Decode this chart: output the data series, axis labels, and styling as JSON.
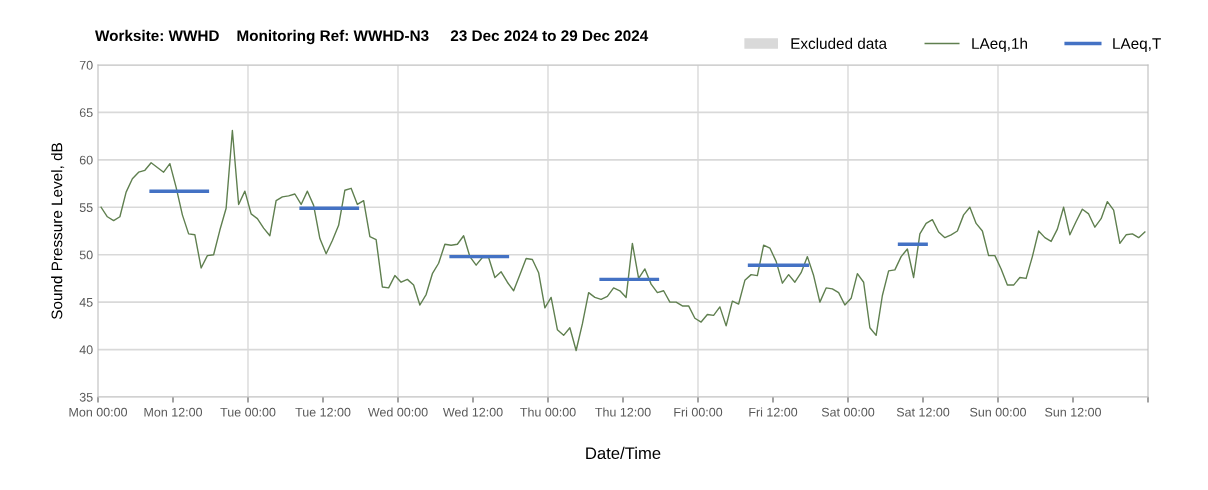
{
  "chart_data": {
    "type": "line",
    "title": "Worksite: WWHD    Monitoring Ref: WWHD-N3     23 Dec 2024 to 29 Dec 2024",
    "xlabel": "Date/Time",
    "ylabel": "Sound Pressure Level, dB",
    "xlim": [
      "2024-12-23T00:00",
      "2024-12-30T00:00"
    ],
    "ylim": [
      35,
      70
    ],
    "yticks": [
      35,
      40,
      45,
      50,
      55,
      60,
      65,
      70
    ],
    "xticks": [
      {
        "value": "2024-12-23T00:00",
        "label": "Mon 00:00"
      },
      {
        "value": "2024-12-23T12:00",
        "label": "Mon 12:00"
      },
      {
        "value": "2024-12-24T00:00",
        "label": "Tue 00:00"
      },
      {
        "value": "2024-12-24T12:00",
        "label": "Tue 12:00"
      },
      {
        "value": "2024-12-25T00:00",
        "label": "Wed 00:00"
      },
      {
        "value": "2024-12-25T12:00",
        "label": "Wed 12:00"
      },
      {
        "value": "2024-12-26T00:00",
        "label": "Thu 00:00"
      },
      {
        "value": "2024-12-26T12:00",
        "label": "Thu 12:00"
      },
      {
        "value": "2024-12-27T00:00",
        "label": "Fri 00:00"
      },
      {
        "value": "2024-12-27T12:00",
        "label": "Fri 12:00"
      },
      {
        "value": "2024-12-28T00:00",
        "label": "Sat 00:00"
      },
      {
        "value": "2024-12-28T12:00",
        "label": "Sat 12:00"
      },
      {
        "value": "2024-12-29T00:00",
        "label": "Sun 00:00"
      },
      {
        "value": "2024-12-29T12:00",
        "label": "Sun 12:00"
      },
      {
        "value": "2024-12-30T00:00",
        "label": null
      }
    ],
    "grid": "y",
    "legend": "top right",
    "ref_lines": [
      {
        "axis": "x",
        "value": "2024-12-24T00:00",
        "color": "#d9d9d9"
      },
      {
        "axis": "x",
        "value": "2024-12-25T00:00",
        "color": "#d9d9d9"
      },
      {
        "axis": "x",
        "value": "2024-12-26T00:00",
        "color": "#d9d9d9"
      },
      {
        "axis": "x",
        "value": "2024-12-27T00:00",
        "color": "#d9d9d9"
      },
      {
        "axis": "x",
        "value": "2024-12-28T00:00",
        "color": "#d9d9d9"
      },
      {
        "axis": "x",
        "value": "2024-12-29T00:00",
        "color": "#d9d9d9"
      }
    ],
    "series": [
      {
        "name": "Excluded data",
        "type": "area",
        "color": "#d9d9d9"
      },
      {
        "name": "LAeq,1h",
        "color": "#5f7f4f",
        "x": [
          "2024-12-23T00:30",
          "2024-12-23T01:30",
          "2024-12-23T02:30",
          "2024-12-23T03:30",
          "2024-12-23T04:30",
          "2024-12-23T05:30",
          "2024-12-23T06:30",
          "2024-12-23T07:30",
          "2024-12-23T08:30",
          "2024-12-23T09:30",
          "2024-12-23T10:30",
          "2024-12-23T11:30",
          "2024-12-23T12:30",
          "2024-12-23T13:30",
          "2024-12-23T14:30",
          "2024-12-23T15:30",
          "2024-12-23T16:30",
          "2024-12-23T17:30",
          "2024-12-23T18:30",
          "2024-12-23T19:30",
          "2024-12-23T20:30",
          "2024-12-23T21:30",
          "2024-12-23T22:30",
          "2024-12-23T23:30",
          "2024-12-24T00:30",
          "2024-12-24T01:30",
          "2024-12-24T02:30",
          "2024-12-24T03:30",
          "2024-12-24T04:30",
          "2024-12-24T05:30",
          "2024-12-24T06:30",
          "2024-12-24T07:30",
          "2024-12-24T08:30",
          "2024-12-24T09:30",
          "2024-12-24T10:30",
          "2024-12-24T11:30",
          "2024-12-24T12:30",
          "2024-12-24T13:30",
          "2024-12-24T14:30",
          "2024-12-24T15:30",
          "2024-12-24T16:30",
          "2024-12-24T17:30",
          "2024-12-24T18:30",
          "2024-12-24T19:30",
          "2024-12-24T20:30",
          "2024-12-24T21:30",
          "2024-12-24T22:30",
          "2024-12-24T23:30",
          "2024-12-25T00:30",
          "2024-12-25T01:30",
          "2024-12-25T02:30",
          "2024-12-25T03:30",
          "2024-12-25T04:30",
          "2024-12-25T05:30",
          "2024-12-25T06:30",
          "2024-12-25T07:30",
          "2024-12-25T08:30",
          "2024-12-25T09:30",
          "2024-12-25T10:30",
          "2024-12-25T11:30",
          "2024-12-25T12:30",
          "2024-12-25T13:30",
          "2024-12-25T14:30",
          "2024-12-25T15:30",
          "2024-12-25T16:30",
          "2024-12-25T17:30",
          "2024-12-25T18:30",
          "2024-12-25T19:30",
          "2024-12-25T20:30",
          "2024-12-25T21:30",
          "2024-12-25T22:30",
          "2024-12-25T23:30",
          "2024-12-26T00:30",
          "2024-12-26T01:30",
          "2024-12-26T02:30",
          "2024-12-26T03:30",
          "2024-12-26T04:30",
          "2024-12-26T05:30",
          "2024-12-26T06:30",
          "2024-12-26T07:30",
          "2024-12-26T08:30",
          "2024-12-26T09:30",
          "2024-12-26T10:30",
          "2024-12-26T11:30",
          "2024-12-26T12:30",
          "2024-12-26T13:30",
          "2024-12-26T14:30",
          "2024-12-26T15:30",
          "2024-12-26T16:30",
          "2024-12-26T17:30",
          "2024-12-26T18:30",
          "2024-12-26T19:30",
          "2024-12-26T20:30",
          "2024-12-26T21:30",
          "2024-12-26T22:30",
          "2024-12-26T23:30",
          "2024-12-27T00:30",
          "2024-12-27T01:30",
          "2024-12-27T02:30",
          "2024-12-27T03:30",
          "2024-12-27T04:30",
          "2024-12-27T05:30",
          "2024-12-27T06:30",
          "2024-12-27T07:30",
          "2024-12-27T08:30",
          "2024-12-27T09:30",
          "2024-12-27T10:30",
          "2024-12-27T11:30",
          "2024-12-27T12:30",
          "2024-12-27T13:30",
          "2024-12-27T14:30",
          "2024-12-27T15:30",
          "2024-12-27T16:30",
          "2024-12-27T17:30",
          "2024-12-27T18:30",
          "2024-12-27T19:30",
          "2024-12-27T20:30",
          "2024-12-27T21:30",
          "2024-12-27T22:30",
          "2024-12-27T23:30",
          "2024-12-28T00:30",
          "2024-12-28T01:30",
          "2024-12-28T02:30",
          "2024-12-28T03:30",
          "2024-12-28T04:30",
          "2024-12-28T05:30",
          "2024-12-28T06:30",
          "2024-12-28T07:30",
          "2024-12-28T08:30",
          "2024-12-28T09:30",
          "2024-12-28T10:30",
          "2024-12-28T11:30",
          "2024-12-28T12:30",
          "2024-12-28T13:30",
          "2024-12-28T14:30",
          "2024-12-28T15:30",
          "2024-12-28T16:30",
          "2024-12-28T17:30",
          "2024-12-28T18:30",
          "2024-12-28T19:30",
          "2024-12-28T20:30",
          "2024-12-28T21:30",
          "2024-12-28T22:30",
          "2024-12-28T23:30",
          "2024-12-29T00:30",
          "2024-12-29T01:30",
          "2024-12-29T02:30",
          "2024-12-29T03:30",
          "2024-12-29T04:30",
          "2024-12-29T05:30",
          "2024-12-29T06:30",
          "2024-12-29T07:30",
          "2024-12-29T08:30",
          "2024-12-29T09:30",
          "2024-12-29T10:30",
          "2024-12-29T11:30",
          "2024-12-29T12:30",
          "2024-12-29T13:30",
          "2024-12-29T14:30",
          "2024-12-29T15:30",
          "2024-12-29T16:30",
          "2024-12-29T17:30",
          "2024-12-29T18:30",
          "2024-12-29T19:30",
          "2024-12-29T20:30",
          "2024-12-29T21:30",
          "2024-12-29T22:30",
          "2024-12-29T23:30"
        ],
        "values": [
          55.0,
          54.0,
          53.6,
          54.0,
          56.6,
          58.0,
          58.7,
          58.9,
          59.7,
          59.2,
          58.7,
          59.6,
          57.1,
          54.2,
          52.2,
          52.1,
          48.6,
          49.9,
          50.0,
          52.6,
          54.9,
          63.1,
          55.3,
          56.7,
          54.3,
          53.8,
          52.8,
          52.0,
          55.7,
          56.1,
          56.2,
          56.4,
          55.3,
          56.7,
          55.2,
          51.7,
          50.1,
          51.5,
          53.1,
          56.8,
          57.0,
          55.3,
          55.7,
          51.9,
          51.6,
          46.6,
          46.5,
          47.8,
          47.1,
          47.4,
          46.8,
          44.7,
          45.8,
          48.0,
          49.1,
          51.1,
          51.0,
          51.1,
          52.0,
          49.8,
          48.9,
          49.7,
          49.7,
          47.6,
          48.2,
          47.1,
          46.2,
          47.9,
          49.6,
          49.5,
          48.1,
          44.4,
          45.5,
          42.1,
          41.5,
          42.3,
          39.9,
          42.7,
          46.0,
          45.5,
          45.3,
          45.6,
          46.5,
          46.2,
          45.5,
          51.2,
          47.5,
          48.5,
          46.9,
          46.0,
          46.2,
          45.0,
          45.0,
          44.6,
          44.6,
          43.3,
          42.9,
          43.7,
          43.6,
          44.5,
          42.5,
          45.1,
          44.8,
          47.3,
          47.9,
          47.8,
          51.0,
          50.7,
          49.3,
          47.0,
          47.9,
          47.1,
          48.1,
          49.8,
          47.8,
          45.0,
          46.5,
          46.4,
          46.0,
          44.7,
          45.4,
          48.0,
          47.1,
          42.3,
          41.5,
          45.7,
          48.3,
          48.4,
          49.8,
          50.6,
          47.6,
          52.2,
          53.3,
          53.7,
          52.4,
          51.8,
          52.1,
          52.5,
          54.2,
          55.0,
          53.3,
          52.5,
          49.9,
          49.9,
          48.5,
          46.8,
          46.8,
          47.6,
          47.5,
          49.8,
          52.5,
          51.8,
          51.4,
          52.7,
          55.0,
          52.1,
          53.5,
          54.8,
          54.3,
          52.9,
          53.8,
          55.6,
          54.7,
          51.2,
          52.1,
          52.2,
          51.8,
          52.4
        ]
      },
      {
        "name": "LAeq,T",
        "color": "#4472c4",
        "x": [
          "2024-12-23T08:30",
          "2024-12-23T17:30",
          "2024-12-23T21:00",
          "2024-12-24T08:30",
          "2024-12-24T17:30",
          "2024-12-24T21:00",
          "2024-12-25T08:30",
          "2024-12-25T17:30",
          "2024-12-25T21:00",
          "2024-12-26T08:30",
          "2024-12-26T17:30",
          "2024-12-26T21:00",
          "2024-12-27T08:15",
          "2024-12-27T17:30",
          "2024-12-27T21:00",
          "2024-12-28T08:15",
          "2024-12-28T12:30"
        ],
        "values": [
          56.7,
          56.7,
          null,
          54.9,
          54.9,
          null,
          49.8,
          49.8,
          null,
          47.4,
          47.4,
          null,
          48.9,
          48.9,
          null,
          51.1,
          51.1
        ]
      }
    ]
  }
}
